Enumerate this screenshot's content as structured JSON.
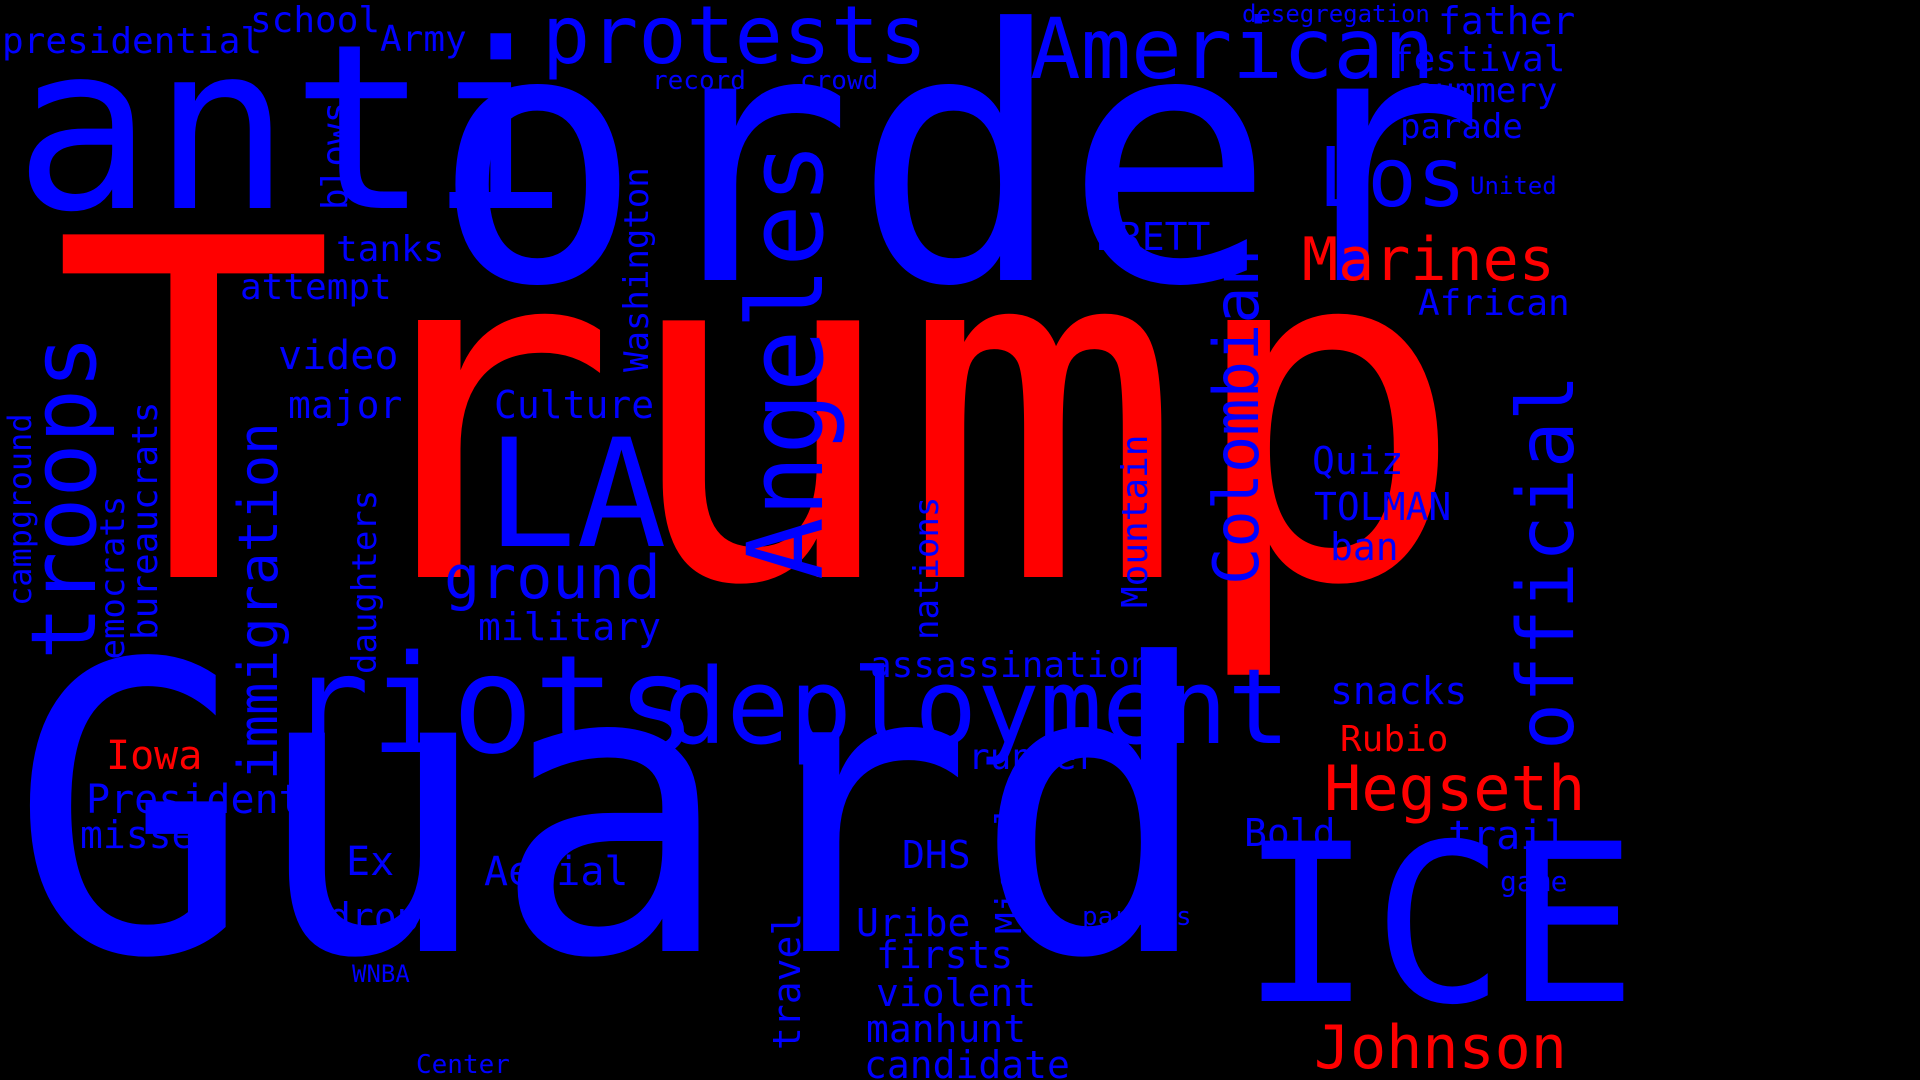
{
  "colors": {
    "background": "#000000",
    "blue": "#0000ff",
    "red": "#ff0000"
  },
  "words": [
    {
      "text": "Trump",
      "color": "red"
    },
    {
      "text": "Guard",
      "color": "blue"
    },
    {
      "text": "order",
      "color": "blue"
    },
    {
      "text": "anti",
      "color": "blue"
    },
    {
      "text": "riots",
      "color": "blue"
    },
    {
      "text": "deployment",
      "color": "blue"
    },
    {
      "text": "ICE",
      "color": "blue"
    },
    {
      "text": "LA",
      "color": "blue"
    },
    {
      "text": "American",
      "color": "blue"
    },
    {
      "text": "protests",
      "color": "blue"
    },
    {
      "text": "troops",
      "color": "blue"
    },
    {
      "text": "Angeles",
      "color": "blue"
    },
    {
      "text": "Los",
      "color": "blue"
    },
    {
      "text": "official",
      "color": "blue"
    },
    {
      "text": "Colombian",
      "color": "blue"
    },
    {
      "text": "Johnson",
      "color": "red"
    },
    {
      "text": "Hegseth",
      "color": "red"
    },
    {
      "text": "Marines",
      "color": "red"
    },
    {
      "text": "ground",
      "color": "blue"
    },
    {
      "text": "immigration",
      "color": "blue"
    },
    {
      "text": "Iowa",
      "color": "red"
    },
    {
      "text": "Rubio",
      "color": "red"
    },
    {
      "text": "presidential",
      "color": "blue"
    },
    {
      "text": "school",
      "color": "blue"
    },
    {
      "text": "Army",
      "color": "blue"
    },
    {
      "text": "desegregation",
      "color": "blue"
    },
    {
      "text": "father",
      "color": "blue"
    },
    {
      "text": "festival",
      "color": "blue"
    },
    {
      "text": "summery",
      "color": "blue"
    },
    {
      "text": "parade",
      "color": "blue"
    },
    {
      "text": "United",
      "color": "blue"
    },
    {
      "text": "record",
      "color": "blue"
    },
    {
      "text": "crowd",
      "color": "blue"
    },
    {
      "text": "blows",
      "color": "blue"
    },
    {
      "text": "tanks",
      "color": "blue"
    },
    {
      "text": "attempt",
      "color": "blue"
    },
    {
      "text": "video",
      "color": "blue"
    },
    {
      "text": "major",
      "color": "blue"
    },
    {
      "text": "Washington",
      "color": "blue"
    },
    {
      "text": "BRETT",
      "color": "blue"
    },
    {
      "text": "African",
      "color": "blue"
    },
    {
      "text": "Culture",
      "color": "blue"
    },
    {
      "text": "Quiz",
      "color": "blue"
    },
    {
      "text": "TOLMAN",
      "color": "blue"
    },
    {
      "text": "ban",
      "color": "blue"
    },
    {
      "text": "military",
      "color": "blue"
    },
    {
      "text": "assassination",
      "color": "blue"
    },
    {
      "text": "snacks",
      "color": "blue"
    },
    {
      "text": "campground",
      "color": "blue"
    },
    {
      "text": "Democrats",
      "color": "blue"
    },
    {
      "text": "bureaucrats",
      "color": "blue"
    },
    {
      "text": "daughters",
      "color": "blue"
    },
    {
      "text": "nations",
      "color": "blue"
    },
    {
      "text": "Mountain",
      "color": "blue"
    },
    {
      "text": "runner",
      "color": "blue"
    },
    {
      "text": "President",
      "color": "blue"
    },
    {
      "text": "missed",
      "color": "blue"
    },
    {
      "text": "Bold",
      "color": "blue"
    },
    {
      "text": "trail",
      "color": "blue"
    },
    {
      "text": "game",
      "color": "blue"
    },
    {
      "text": "Miguel",
      "color": "blue"
    },
    {
      "text": "DHS",
      "color": "blue"
    },
    {
      "text": "Ex",
      "color": "blue"
    },
    {
      "text": "Aerial",
      "color": "blue"
    },
    {
      "text": "drop",
      "color": "blue"
    },
    {
      "text": "parents",
      "color": "blue"
    },
    {
      "text": "Uribe",
      "color": "blue"
    },
    {
      "text": "firsts",
      "color": "blue"
    },
    {
      "text": "violent",
      "color": "blue"
    },
    {
      "text": "travel",
      "color": "blue"
    },
    {
      "text": "WNBA",
      "color": "blue"
    },
    {
      "text": "manhunt",
      "color": "blue"
    },
    {
      "text": "candidate",
      "color": "blue"
    },
    {
      "text": "Center",
      "color": "blue"
    }
  ]
}
